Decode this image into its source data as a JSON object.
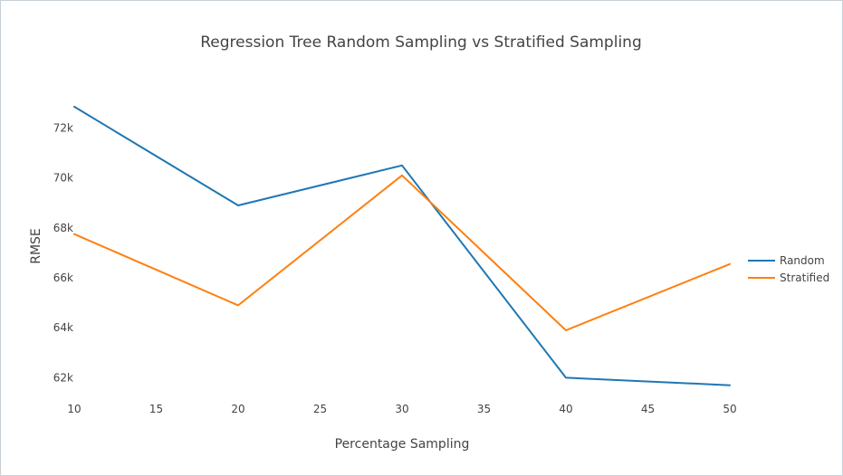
{
  "chart_data": {
    "type": "line",
    "title": "Regression Tree Random Sampling vs Stratified Sampling",
    "xlabel": "Percentage Sampling",
    "ylabel": "RMSE",
    "x": [
      10,
      20,
      30,
      40,
      50
    ],
    "xlim": [
      10,
      50
    ],
    "ylim": [
      61000,
      73500
    ],
    "x_ticks": [
      10,
      15,
      20,
      25,
      30,
      35,
      40,
      45,
      50
    ],
    "x_tick_labels": [
      "10",
      "15",
      "20",
      "25",
      "30",
      "35",
      "40",
      "45",
      "50"
    ],
    "y_ticks": [
      62000,
      64000,
      66000,
      68000,
      70000,
      72000
    ],
    "y_tick_labels": [
      "62k",
      "64k",
      "66k",
      "68k",
      "70k",
      "72k"
    ],
    "grid": false,
    "legend_position": "right",
    "series": [
      {
        "name": "Random",
        "color": "#1f77b4",
        "values": [
          72850,
          68900,
          70500,
          62000,
          61700
        ]
      },
      {
        "name": "Stratified",
        "color": "#ff7f0e",
        "values": [
          67750,
          64900,
          70100,
          63900,
          66550
        ]
      }
    ]
  }
}
